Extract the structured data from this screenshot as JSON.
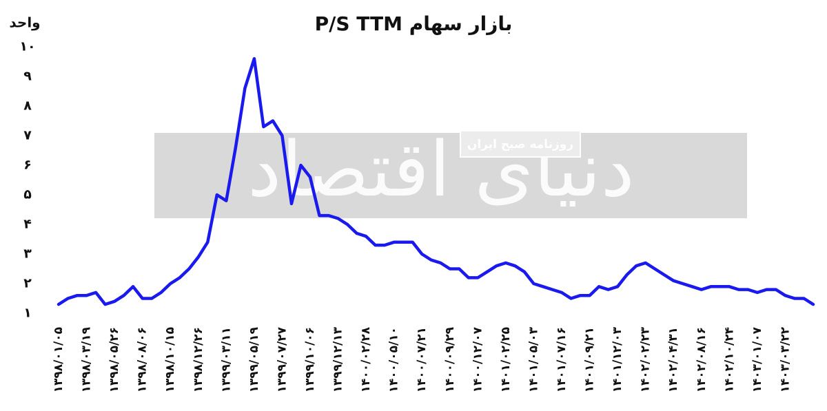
{
  "chart_data": {
    "type": "line",
    "title": "P/S TTM بازار سهام",
    "y_label": "واحد",
    "watermark": "دنیای اقتصاد",
    "watermark_subtitle": "روزنامه صبح ایران",
    "color": "#1a1aee",
    "categories": [
      "۱۳۹۸/۰۱/۰۵",
      null,
      null,
      "۱۳۹۸/۰۳/۱۹",
      null,
      null,
      "۱۳۹۸/۰۵/۲۶",
      null,
      null,
      "۱۳۹۸/۰۸/۰۶",
      null,
      null,
      "۱۳۹۸/۱۰/۱۵",
      null,
      null,
      "۱۳۹۸/۱۲/۲۶",
      null,
      null,
      "۱۳۹۹/۰۳/۱۱",
      null,
      null,
      "۱۳۹۹/۰۵/۱۹",
      null,
      null,
      "۱۳۹۹/۰۷/۲۷",
      null,
      null,
      "۱۳۹۹/۱۰/۰۶",
      null,
      null,
      "۱۳۹۹/۱۲/۱۳",
      null,
      null,
      "۱۴۰۰/۰۲/۲۸",
      null,
      null,
      "۱۴۰۰/۰۵/۱۰",
      null,
      null,
      "۱۴۰۰/۰۷/۲۱",
      null,
      null,
      "۱۴۰۰/۰۹/۲۹",
      null,
      null,
      "۱۴۰۰/۱۲/۰۷",
      null,
      null,
      "۱۴۰۱/۰۲/۲۵",
      null,
      null,
      "۱۴۰۱/۰۵/۰۳",
      null,
      null,
      "۱۴۰۱/۰۷/۱۶",
      null,
      null,
      "۱۴۰۱/۰۹/۲۱",
      null,
      null,
      "۱۴۰۱/۱۲/۰۳",
      null,
      null,
      "۱۴۰۲/۰۲/۲۳",
      null,
      null,
      "۱۴۰۲/۰۴/۳۱",
      null,
      null,
      "۱۴۰۲/۰۸/۱۶",
      null,
      null,
      "۱۴۰۲/۱۰/۲۴",
      null,
      null,
      "۱۴۰۳/۰۱/۰۷",
      null,
      null,
      "۱۴۰۳/۰۳/۲۲",
      null,
      null,
      null
    ],
    "values": [
      1.3,
      1.5,
      1.6,
      1.6,
      1.7,
      1.3,
      1.4,
      1.6,
      1.9,
      1.5,
      1.5,
      1.7,
      2.0,
      2.2,
      2.5,
      2.9,
      3.4,
      5.0,
      4.8,
      6.6,
      8.6,
      9.6,
      7.3,
      7.5,
      7.0,
      4.7,
      6.0,
      5.6,
      4.3,
      4.3,
      4.2,
      4.0,
      3.7,
      3.6,
      3.3,
      3.3,
      3.4,
      3.4,
      3.4,
      3.0,
      2.8,
      2.7,
      2.5,
      2.5,
      2.2,
      2.2,
      2.4,
      2.6,
      2.7,
      2.6,
      2.4,
      2.0,
      1.9,
      1.8,
      1.7,
      1.5,
      1.6,
      1.6,
      1.9,
      1.8,
      1.9,
      2.3,
      2.6,
      2.7,
      2.5,
      2.3,
      2.1,
      2.0,
      1.9,
      1.8,
      1.9,
      1.9,
      1.9,
      1.8,
      1.8,
      1.7,
      1.8,
      1.8,
      1.6,
      1.5,
      1.5,
      1.3
    ],
    "ylim": [
      1,
      10
    ],
    "yticks": [
      {
        "value": 1,
        "label": "۱"
      },
      {
        "value": 2,
        "label": "۲"
      },
      {
        "value": 3,
        "label": "۳"
      },
      {
        "value": 4,
        "label": "۴"
      },
      {
        "value": 5,
        "label": "۵"
      },
      {
        "value": 6,
        "label": "۶"
      },
      {
        "value": 7,
        "label": "۷"
      },
      {
        "value": 8,
        "label": "۸"
      },
      {
        "value": 9,
        "label": "۹"
      },
      {
        "value": 10,
        "label": "۱۰"
      }
    ],
    "grid": false
  }
}
